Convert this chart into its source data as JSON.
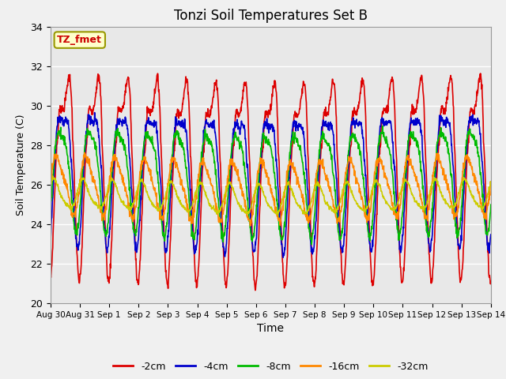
{
  "title": "Tonzi Soil Temperatures Set B",
  "xlabel": "Time",
  "ylabel": "Soil Temperature (C)",
  "ylim": [
    20,
    34
  ],
  "background_color": "#e8e8e8",
  "figure_color": "#f0f0f0",
  "grid_color": "#ffffff",
  "label_box_text": "TZ_fmet",
  "label_box_bg": "#ffffcc",
  "label_box_edge": "#999900",
  "label_box_text_color": "#cc0000",
  "series": [
    {
      "label": "-2cm",
      "color": "#dd0000",
      "base": 27.0,
      "amp_day": 4.5,
      "amp_half": 1.5,
      "phase_day": -1.57,
      "phase_half": -1.0,
      "skew": 0.4
    },
    {
      "label": "-4cm",
      "color": "#0000cc",
      "base": 26.8,
      "amp_day": 3.2,
      "amp_half": 0.8,
      "phase_day": -1.1,
      "phase_half": -0.7,
      "skew": 0.3
    },
    {
      "label": "-8cm",
      "color": "#00bb00",
      "base": 26.5,
      "amp_day": 2.5,
      "amp_half": 0.5,
      "phase_day": -0.7,
      "phase_half": -0.3,
      "skew": 0.2
    },
    {
      "label": "-16cm",
      "color": "#ff8800",
      "base": 26.0,
      "amp_day": 1.4,
      "amp_half": 0.3,
      "phase_day": 0.0,
      "phase_half": 0.3,
      "skew": 0.1
    },
    {
      "label": "-32cm",
      "color": "#cccc00",
      "base": 25.5,
      "amp_day": 0.7,
      "amp_half": 0.15,
      "phase_day": 0.8,
      "phase_half": 0.8,
      "skew": 0.0
    }
  ],
  "xtick_labels": [
    "Aug 30",
    "Aug 31",
    "Sep 1",
    "Sep 2",
    "Sep 3",
    "Sep 4",
    "Sep 5",
    "Sep 6",
    "Sep 7",
    "Sep 8",
    "Sep 9",
    "Sep 10",
    "Sep 11",
    "Sep 12",
    "Sep 13",
    "Sep 14"
  ],
  "n_days": 15,
  "points_per_day": 96
}
